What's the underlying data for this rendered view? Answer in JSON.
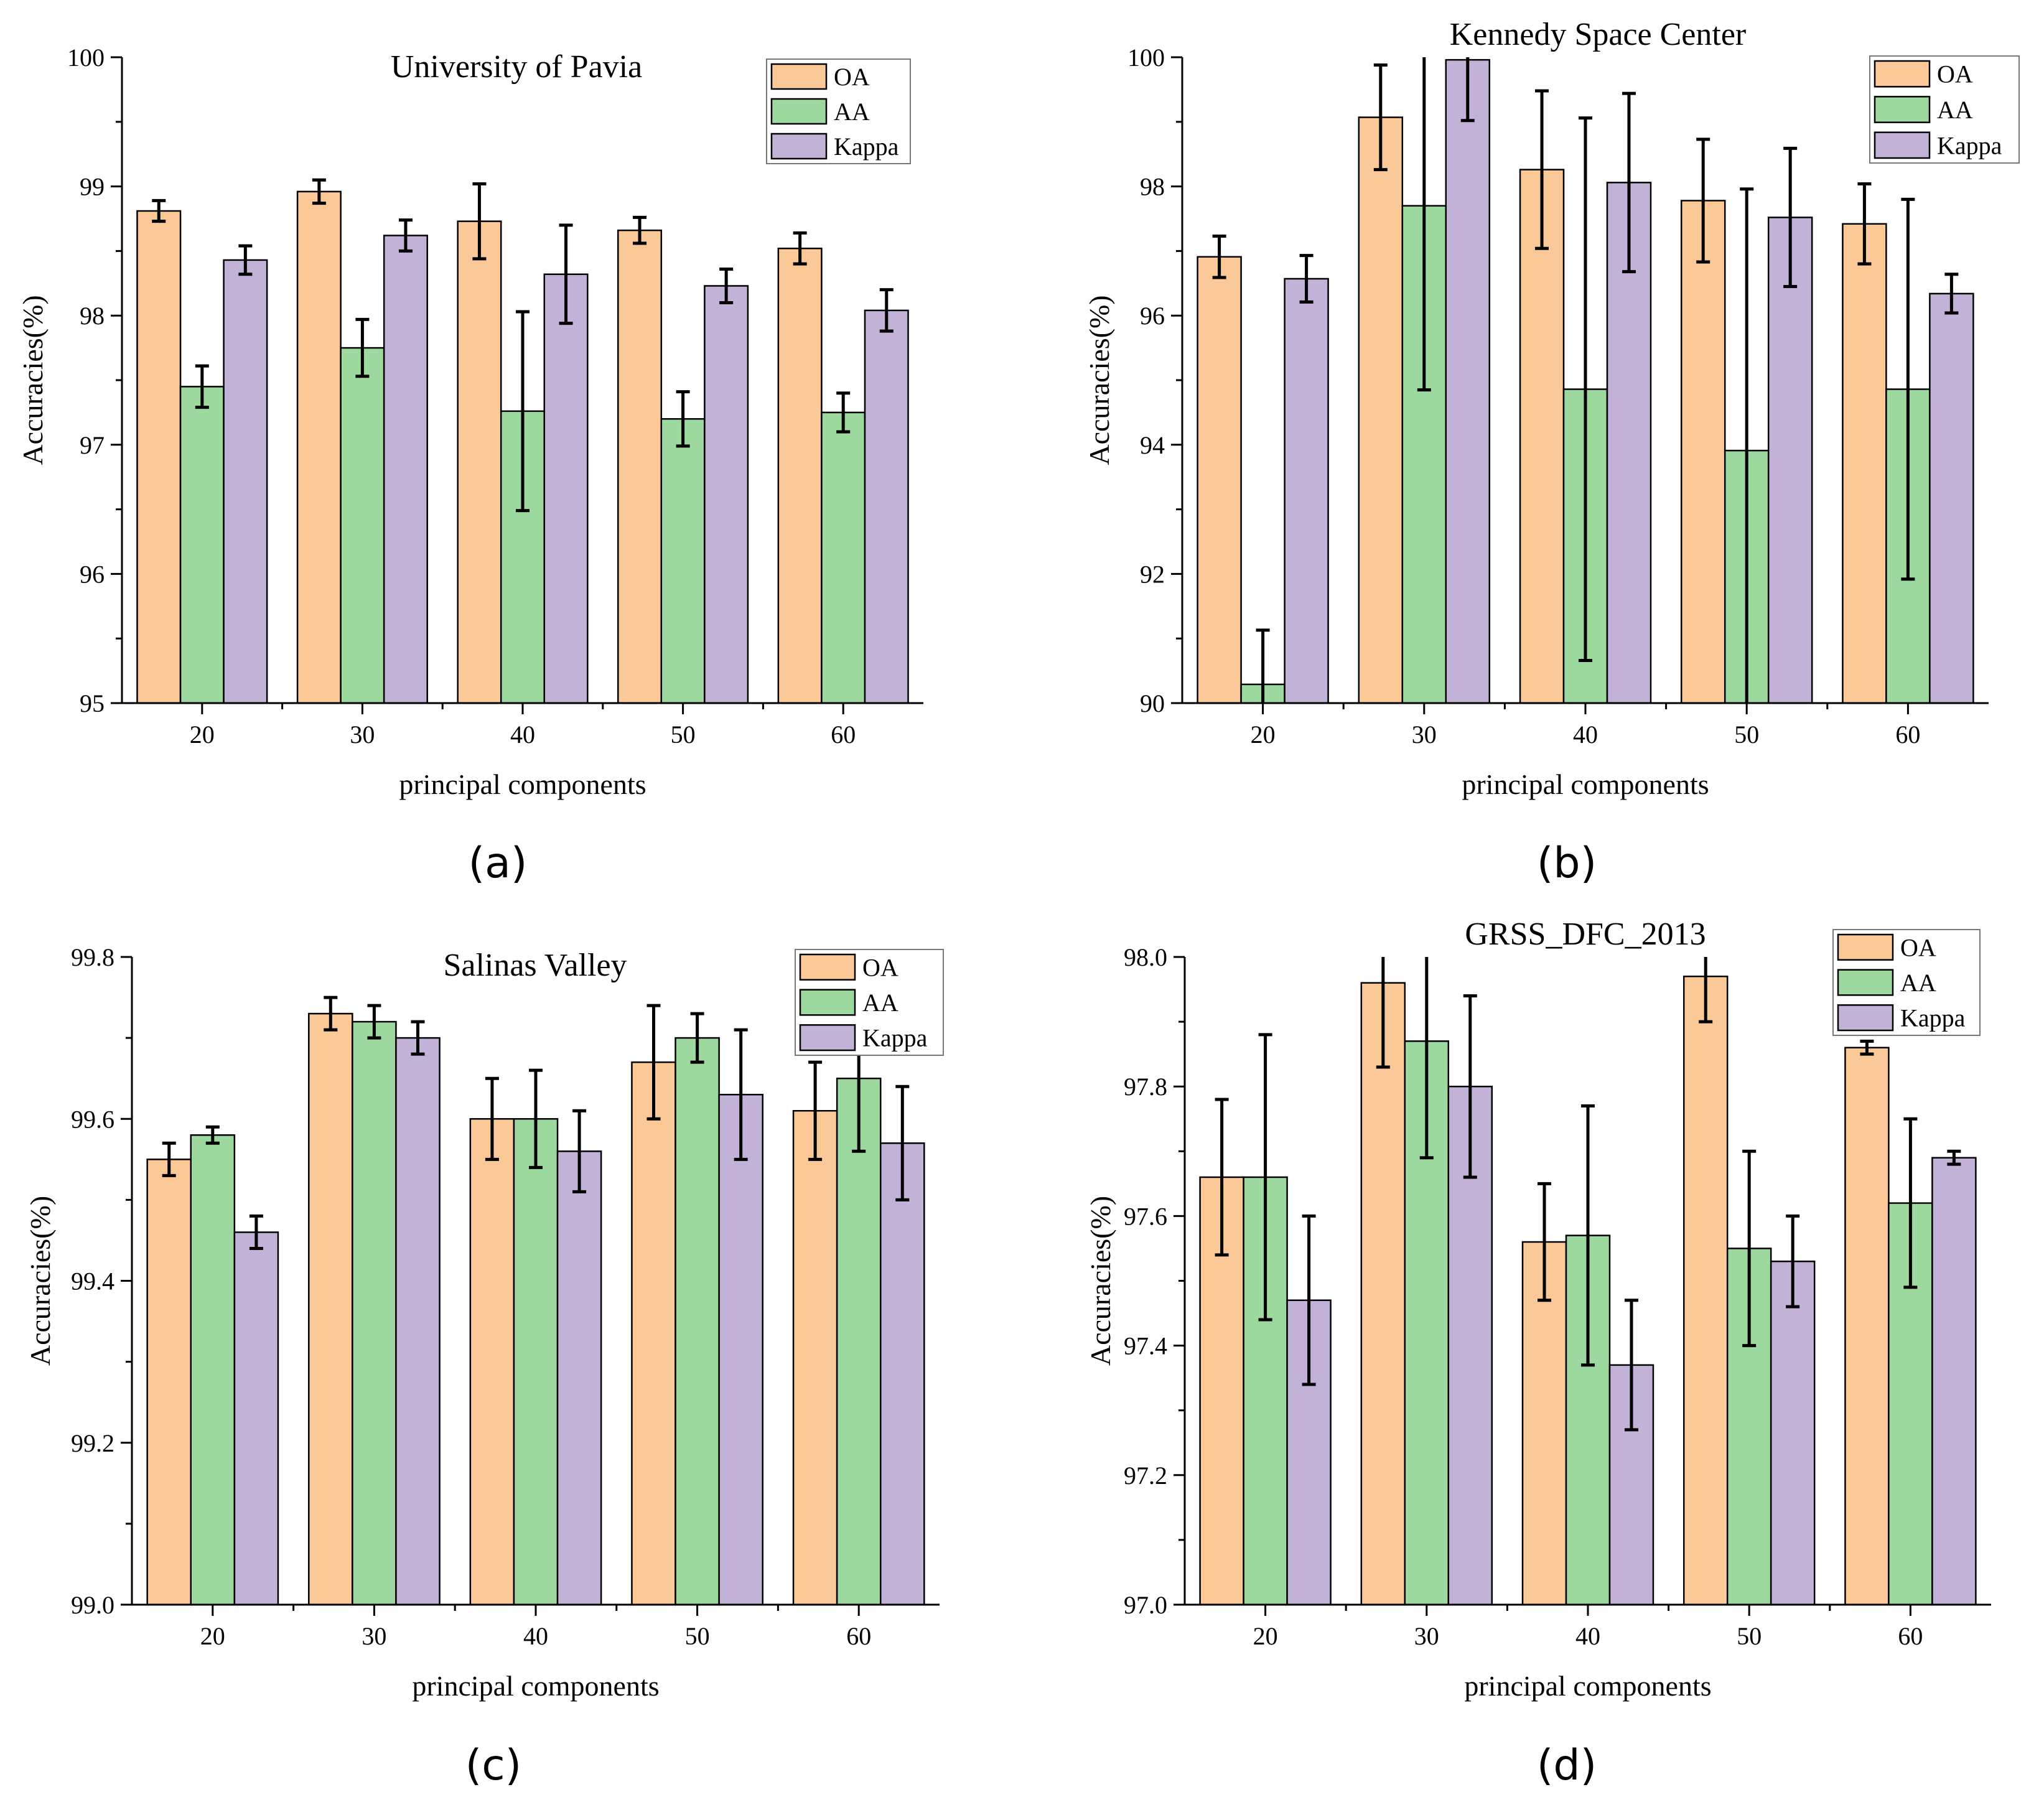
{
  "figure": {
    "colors": {
      "OA": "#fbc898",
      "AA": "#9dd89e",
      "Kappa": "#c3b2d8",
      "stroke": "#000000"
    },
    "series_names": [
      "OA",
      "AA",
      "Kappa"
    ]
  },
  "chart_data": [
    {
      "type": "bar",
      "panel_label": "(a)",
      "title": "University of Pavia",
      "xlabel": "principal components",
      "ylabel": "Accuracies(%)",
      "categories": [
        "20",
        "30",
        "40",
        "50",
        "60"
      ],
      "ylim": [
        95,
        100
      ],
      "yticks": [
        "95",
        "96",
        "97",
        "98",
        "99",
        "100"
      ],
      "legend": "top-right",
      "series": [
        {
          "name": "OA",
          "values": [
            98.81,
            98.96,
            98.73,
            98.66,
            98.52
          ],
          "errors": [
            0.08,
            0.09,
            0.29,
            0.1,
            0.12
          ]
        },
        {
          "name": "AA",
          "values": [
            97.45,
            97.75,
            97.26,
            97.2,
            97.25
          ],
          "errors": [
            0.16,
            0.22,
            0.77,
            0.21,
            0.15
          ]
        },
        {
          "name": "Kappa",
          "values": [
            98.43,
            98.62,
            98.32,
            98.23,
            98.04
          ],
          "errors": [
            0.11,
            0.12,
            0.38,
            0.13,
            0.16
          ]
        }
      ]
    },
    {
      "type": "bar",
      "panel_label": "(b)",
      "title": "Kennedy Space Center",
      "xlabel": "principal components",
      "ylabel": "Accuracies(%)",
      "categories": [
        "20",
        "30",
        "40",
        "50",
        "60"
      ],
      "ylim": [
        90,
        100
      ],
      "yticks": [
        "90",
        "92",
        "94",
        "96",
        "98",
        "100"
      ],
      "legend": "top-right",
      "series": [
        {
          "name": "OA",
          "values": [
            96.91,
            99.07,
            98.26,
            97.78,
            97.42
          ],
          "errors": [
            0.32,
            0.81,
            1.22,
            0.95,
            0.62
          ]
        },
        {
          "name": "AA",
          "values": [
            90.29,
            97.7,
            94.86,
            93.91,
            94.86
          ],
          "errors": [
            0.84,
            2.85,
            4.2,
            4.05,
            2.94
          ]
        },
        {
          "name": "Kappa",
          "values": [
            96.57,
            99.96,
            98.06,
            97.52,
            96.34
          ],
          "errors": [
            0.36,
            0.94,
            1.38,
            1.07,
            0.3
          ]
        }
      ]
    },
    {
      "type": "bar",
      "panel_label": "(c)",
      "title": "Salinas Valley",
      "xlabel": "principal components",
      "ylabel": "Accuracies(%)",
      "categories": [
        "20",
        "30",
        "40",
        "50",
        "60"
      ],
      "ylim": [
        99.0,
        99.8
      ],
      "yticks": [
        "99.0",
        "99.2",
        "99.4",
        "99.6",
        "99.8"
      ],
      "legend": "top-right",
      "series": [
        {
          "name": "OA",
          "values": [
            99.55,
            99.73,
            99.6,
            99.67,
            99.61
          ],
          "errors": [
            0.02,
            0.02,
            0.05,
            0.07,
            0.06
          ]
        },
        {
          "name": "AA",
          "values": [
            99.58,
            99.72,
            99.6,
            99.7,
            99.65
          ],
          "errors": [
            0.01,
            0.02,
            0.06,
            0.03,
            0.09
          ]
        },
        {
          "name": "Kappa",
          "values": [
            99.46,
            99.7,
            99.56,
            99.63,
            99.57
          ],
          "errors": [
            0.02,
            0.02,
            0.05,
            0.08,
            0.07
          ]
        }
      ]
    },
    {
      "type": "bar",
      "panel_label": "(d)",
      "title": "GRSS_DFC_2013",
      "xlabel": "principal components",
      "ylabel": "Accuracies(%)",
      "categories": [
        "20",
        "30",
        "40",
        "50",
        "60"
      ],
      "ylim": [
        97.0,
        98.0
      ],
      "yticks": [
        "97.0",
        "97.2",
        "97.4",
        "97.6",
        "97.8",
        "98.0"
      ],
      "legend": "top-right",
      "series": [
        {
          "name": "OA",
          "values": [
            97.66,
            97.96,
            97.56,
            97.97,
            97.86
          ],
          "errors": [
            0.12,
            0.13,
            0.09,
            0.07,
            0.01
          ]
        },
        {
          "name": "AA",
          "values": [
            97.66,
            97.87,
            97.57,
            97.55,
            97.62
          ],
          "errors": [
            0.22,
            0.18,
            0.2,
            0.15,
            0.13
          ]
        },
        {
          "name": "Kappa",
          "values": [
            97.47,
            97.8,
            97.37,
            97.53,
            97.69
          ],
          "errors": [
            0.13,
            0.14,
            0.1,
            0.07,
            0.01
          ]
        }
      ]
    }
  ]
}
